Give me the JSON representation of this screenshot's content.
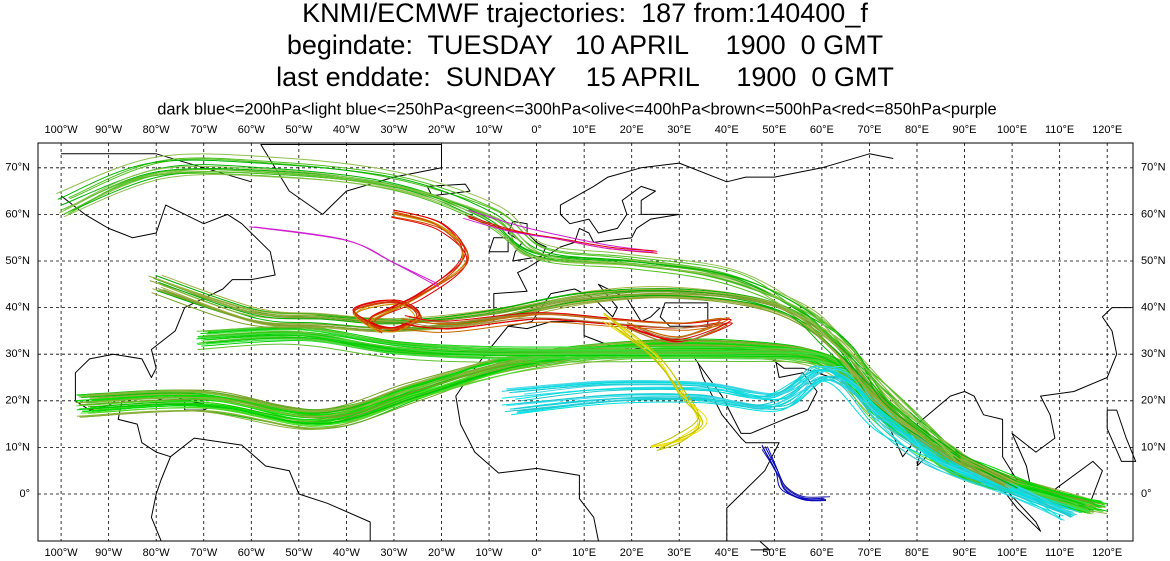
{
  "header": {
    "title": "KNMI/ECMWF trajectories:  187 from:140400_f",
    "begindate": "begindate:  TUESDAY   10 APRIL     1900  0 GMT",
    "enddate": "last enddate:  SUNDAY    15 APRIL     1900  0 GMT",
    "legend": "dark blue<=200hPa<light blue<=250hPa<green<=300hPa<olive<=400hPa<brown<=500hPa<red<=850hPa<purple"
  },
  "map": {
    "lon_labels": [
      "100°W",
      "90°W",
      "80°W",
      "70°W",
      "60°W",
      "50°W",
      "40°W",
      "30°W",
      "20°W",
      "10°W",
      "0°",
      "10°E",
      "20°E",
      "30°E",
      "40°E",
      "50°E",
      "60°E",
      "70°E",
      "80°E",
      "90°E",
      "100°E",
      "110°E",
      "120°E"
    ],
    "lat_labels": [
      "70°N",
      "60°N",
      "50°N",
      "40°N",
      "30°N",
      "20°N",
      "10°N",
      "0°"
    ]
  }
}
